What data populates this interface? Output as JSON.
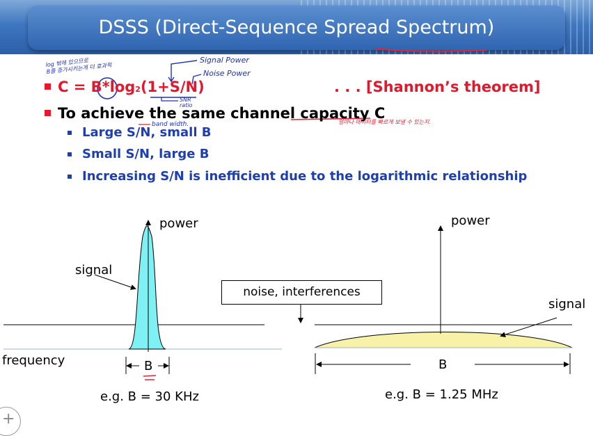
{
  "title": "DSSS (Direct-Sequence Spread Spectrum)",
  "annotations": {
    "korean_note": "log 밖에 있으므로\nB를 증가시키는게 더 효과적",
    "signal_power": "Signal Power",
    "noise_power": "Noise Power",
    "snr_ratio": "SNR\nratio",
    "bandwidth": "band width.",
    "capacity_note": "얼마나 데이터를 빠르게 보낼 수 있는지."
  },
  "bullets": {
    "formula_prefix": "C = ",
    "formula_b": "B",
    "formula_mid": "*log",
    "formula_sub": "2",
    "formula_paren": "(1+S/N)",
    "formula_right": ". . . [Shannon’s theorem]",
    "line2_a": "To achieve the same channel ",
    "line2_b": "capacity C",
    "sub1": "Large S/N, small B",
    "sub2": "Small S/N, large B",
    "sub3": "Increasing S/N is inefficient due to the logarithmic relationship"
  },
  "diagram": {
    "left_power": "power",
    "left_signal": "signal",
    "frequency": "frequency",
    "left_b": "B",
    "left_example": "e.g. B = 30 KHz",
    "noise": "noise, interferences",
    "right_power": "power",
    "right_signal": "signal",
    "right_b": "B",
    "right_example": "e.g. B = 1.25 MHz"
  },
  "colors": {
    "narrow_signal": "#7ff0f4",
    "spread_signal": "#f7f2a8",
    "title_bar": "#2f64b0",
    "bullet_red": "#e8192c",
    "text_blue": "#1f3fb0"
  }
}
